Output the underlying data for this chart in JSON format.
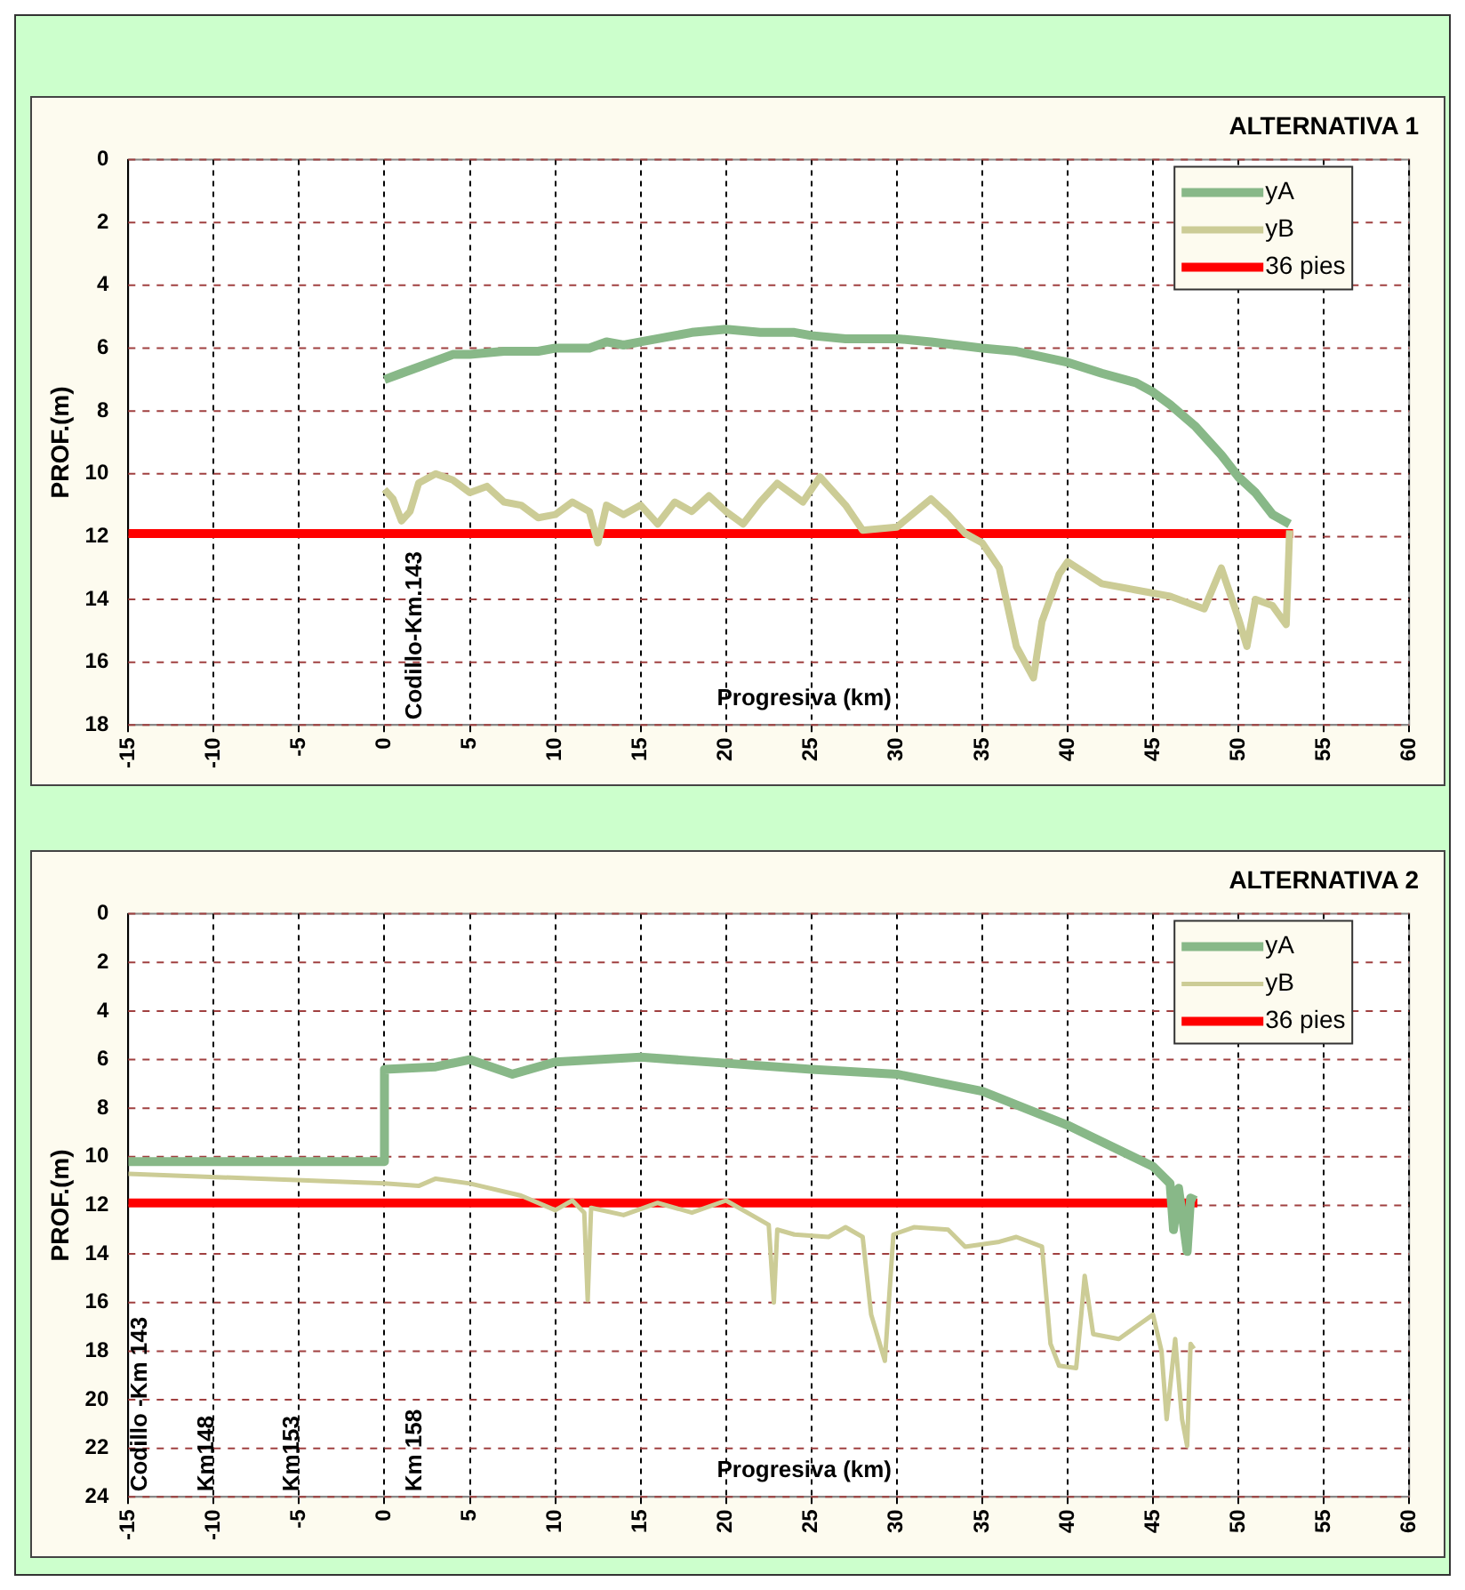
{
  "chart_data": [
    {
      "type": "line",
      "title": "ALTERNATIVA 1",
      "xlabel": "Progresiva (km)",
      "ylabel": "PROF.(m)",
      "xlim": [
        -15,
        60
      ],
      "xticks": [
        -15,
        -10,
        -5,
        0,
        5,
        10,
        15,
        20,
        25,
        30,
        35,
        40,
        45,
        50,
        55,
        60
      ],
      "ylim": [
        18,
        0
      ],
      "yticks": [
        0,
        2,
        4,
        6,
        8,
        10,
        12,
        14,
        16,
        18
      ],
      "grid": true,
      "legend": "top right",
      "series": [
        {
          "name": "yA",
          "color": "#88b888",
          "x": [
            0,
            1,
            2,
            3,
            4,
            5,
            7,
            9,
            10,
            12,
            13,
            14,
            15,
            17,
            18,
            20,
            22,
            24,
            25,
            27,
            30,
            32,
            35,
            37,
            40,
            42,
            44,
            45,
            46,
            47.5,
            49,
            50,
            51,
            52,
            53
          ],
          "values": [
            7.0,
            6.8,
            6.6,
            6.4,
            6.2,
            6.2,
            6.1,
            6.1,
            6.0,
            6.0,
            5.8,
            5.9,
            5.8,
            5.6,
            5.5,
            5.4,
            5.5,
            5.5,
            5.6,
            5.7,
            5.7,
            5.8,
            6.0,
            6.1,
            6.45,
            6.8,
            7.1,
            7.4,
            7.8,
            8.5,
            9.4,
            10.1,
            10.6,
            11.3,
            11.6
          ]
        },
        {
          "name": "yB",
          "color": "#cccc96",
          "x": [
            0,
            0.5,
            1,
            1.5,
            2,
            3,
            4,
            5,
            6,
            7,
            8,
            9,
            10,
            11,
            12,
            12.5,
            13,
            14,
            15,
            16,
            17,
            18,
            19,
            20,
            21,
            22,
            23,
            24.5,
            25.5,
            27,
            28,
            30,
            32,
            33,
            34,
            35,
            36,
            37,
            38,
            38.5,
            39.5,
            40,
            42,
            44,
            46,
            48,
            49,
            50,
            50.5,
            51,
            52,
            52.8,
            53
          ],
          "values": [
            10.5,
            10.8,
            11.5,
            11.2,
            10.3,
            10.0,
            10.2,
            10.6,
            10.4,
            10.9,
            11.0,
            11.4,
            11.3,
            10.9,
            11.2,
            12.2,
            11.0,
            11.3,
            11.0,
            11.6,
            10.9,
            11.2,
            10.7,
            11.2,
            11.6,
            10.9,
            10.3,
            10.9,
            10.1,
            11.0,
            11.8,
            11.7,
            10.8,
            11.3,
            11.9,
            12.2,
            13.0,
            15.5,
            16.5,
            14.7,
            13.2,
            12.8,
            13.5,
            13.7,
            13.9,
            14.3,
            13.0,
            14.6,
            15.5,
            14.0,
            14.2,
            14.8,
            11.8
          ]
        },
        {
          "name": "36 pies",
          "color": "#ff0000",
          "x": [
            -15,
            53.2
          ],
          "values": [
            11.9,
            11.9
          ]
        }
      ],
      "annotations": [
        "Codillo-Km.143"
      ]
    },
    {
      "type": "line",
      "title": "ALTERNATIVA 2",
      "xlabel": "Progresiva (km)",
      "ylabel": "PROF.(m)",
      "xlim": [
        -15,
        60
      ],
      "xticks": [
        -15,
        -10,
        -5,
        0,
        5,
        10,
        15,
        20,
        25,
        30,
        35,
        40,
        45,
        50,
        55,
        60
      ],
      "ylim": [
        24,
        0
      ],
      "yticks": [
        0,
        2,
        4,
        6,
        8,
        10,
        12,
        14,
        16,
        18,
        20,
        22,
        24
      ],
      "grid": true,
      "legend": "top right",
      "series": [
        {
          "name": "yA",
          "color": "#88b888",
          "x": [
            -15,
            0,
            0,
            3,
            5,
            7.5,
            10,
            15,
            20,
            25,
            30,
            35,
            40,
            45,
            46,
            46.2,
            46.5,
            47,
            47.2,
            47.5
          ],
          "values": [
            10.2,
            10.2,
            6.4,
            6.3,
            6.0,
            6.6,
            6.1,
            5.9,
            6.15,
            6.4,
            6.6,
            7.3,
            8.7,
            10.4,
            11.1,
            13.0,
            11.3,
            13.9,
            11.7,
            11.8
          ]
        },
        {
          "name": "yB",
          "color": "#cccc96",
          "x": [
            -15,
            0,
            2,
            3,
            5,
            8,
            10,
            11,
            11.7,
            11.9,
            12.1,
            14,
            16,
            18,
            20,
            22,
            22.5,
            22.8,
            23,
            24,
            26,
            27,
            28,
            28.5,
            29.3,
            29.8,
            31,
            33,
            34,
            36,
            37,
            38.5,
            39,
            39.5,
            40.5,
            40.8,
            41,
            41.5,
            43,
            44,
            45,
            45.5,
            45.8,
            46.3,
            46.7,
            47,
            47.2,
            47.4
          ],
          "values": [
            10.7,
            11.1,
            11.2,
            10.9,
            11.1,
            11.6,
            12.2,
            11.8,
            12.3,
            15.9,
            12.1,
            12.4,
            11.9,
            12.3,
            11.8,
            12.6,
            12.8,
            16.0,
            13.0,
            13.2,
            13.3,
            12.9,
            13.3,
            16.5,
            18.4,
            13.2,
            12.9,
            13.0,
            13.7,
            13.5,
            13.3,
            13.7,
            17.7,
            18.6,
            18.7,
            16.5,
            14.9,
            17.3,
            17.5,
            17.0,
            16.5,
            18.0,
            20.8,
            17.5,
            20.8,
            21.9,
            17.7,
            17.9
          ]
        },
        {
          "name": "36 pies",
          "color": "#ff0000",
          "x": [
            -15,
            47.6
          ],
          "values": [
            11.9,
            11.9
          ]
        }
      ],
      "annotations": [
        "Codillo -Km 143",
        "Km148",
        "Km153",
        "Km 158"
      ]
    }
  ]
}
